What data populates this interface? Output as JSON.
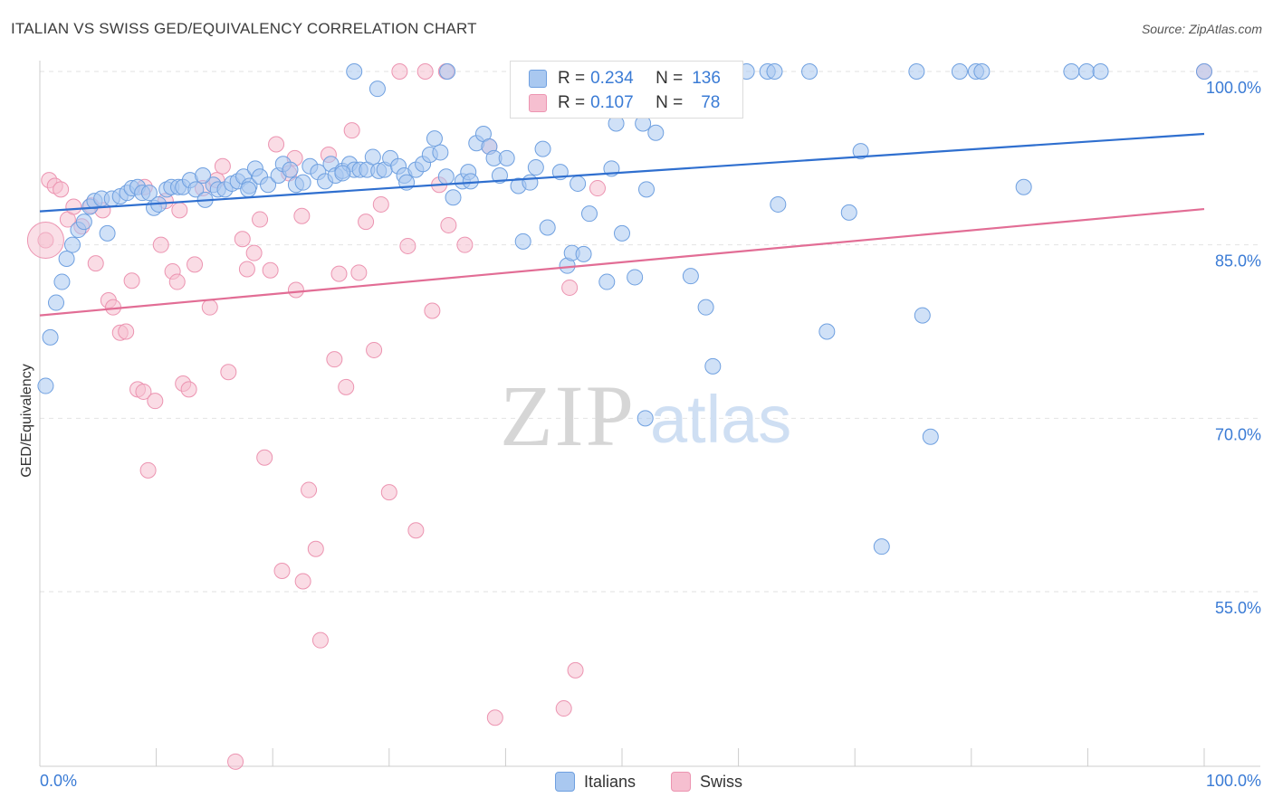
{
  "title": "ITALIAN VS SWISS GED/EQUIVALENCY CORRELATION CHART",
  "source": "Source: ZipAtlas.com",
  "watermark": {
    "zip": "ZIP",
    "atlas": "atlas"
  },
  "legend": {
    "r_label": "R =",
    "n_label": "N =",
    "rows": [
      {
        "r": "0.234",
        "n": "136"
      },
      {
        "r": "0.107",
        "n": "78"
      }
    ]
  },
  "bottom_legend": [
    "Italians",
    "Swiss"
  ],
  "colors": {
    "italians_fill": "#a9c8f0",
    "italians_stroke": "#6fa0e0",
    "italians_line": "#2f6fcf",
    "swiss_fill": "#f6bfd0",
    "swiss_stroke": "#ec94b1",
    "swiss_line": "#e26d95",
    "tick_text": "#3a7bd5",
    "grid": "#e2e2e2"
  },
  "chart_data": {
    "type": "scatter",
    "title": "ITALIAN VS SWISS GED/EQUIVALENCY CORRELATION CHART",
    "xlabel": "",
    "ylabel": "GED/Equivalency",
    "xlim": [
      0,
      100
    ],
    "ylim": [
      40,
      101.5
    ],
    "x_tick_labels": [
      "0.0%",
      "100.0%"
    ],
    "y_ticks": [
      55,
      70,
      85,
      100
    ],
    "y_tick_labels": [
      "55.0%",
      "70.0%",
      "85.0%",
      "100.0%"
    ],
    "grid": true,
    "legend_position": "top-center",
    "series": [
      {
        "name": "Italians",
        "r": 0.234,
        "n": 136,
        "trend": [
          [
            0,
            87.9
          ],
          [
            100,
            94.6
          ]
        ],
        "points": [
          [
            0.5,
            72.8
          ],
          [
            0.9,
            77.0
          ],
          [
            1.4,
            80.0
          ],
          [
            1.9,
            81.8
          ],
          [
            2.3,
            83.8
          ],
          [
            2.8,
            85.0
          ],
          [
            3.3,
            86.3
          ],
          [
            3.8,
            87.0
          ],
          [
            4.3,
            88.3
          ],
          [
            4.7,
            88.8
          ],
          [
            5.3,
            89.0
          ],
          [
            5.8,
            86.0
          ],
          [
            6.2,
            89.0
          ],
          [
            6.9,
            89.2
          ],
          [
            7.5,
            89.5
          ],
          [
            7.9,
            89.9
          ],
          [
            8.4,
            90.0
          ],
          [
            8.8,
            89.5
          ],
          [
            9.4,
            89.5
          ],
          [
            9.8,
            88.2
          ],
          [
            10.2,
            88.5
          ],
          [
            10.9,
            89.8
          ],
          [
            11.3,
            90.0
          ],
          [
            11.9,
            90.0
          ],
          [
            12.3,
            90.0
          ],
          [
            12.9,
            90.6
          ],
          [
            13.4,
            89.8
          ],
          [
            14.2,
            88.9
          ],
          [
            14.9,
            90.2
          ],
          [
            15.3,
            89.8
          ],
          [
            15.9,
            89.8
          ],
          [
            16.5,
            90.3
          ],
          [
            17.0,
            90.5
          ],
          [
            17.5,
            90.9
          ],
          [
            18.0,
            90.1
          ],
          [
            18.5,
            91.6
          ],
          [
            18.9,
            90.9
          ],
          [
            19.6,
            90.2
          ],
          [
            20.5,
            91.0
          ],
          [
            20.9,
            92.0
          ],
          [
            21.5,
            91.5
          ],
          [
            22.0,
            90.2
          ],
          [
            22.6,
            90.4
          ],
          [
            23.2,
            91.8
          ],
          [
            23.9,
            91.3
          ],
          [
            24.5,
            90.5
          ],
          [
            25.0,
            92.0
          ],
          [
            25.4,
            91.0
          ],
          [
            26.0,
            91.4
          ],
          [
            26.6,
            92.0
          ],
          [
            27.0,
            91.5
          ],
          [
            27.5,
            91.5
          ],
          [
            28.1,
            91.5
          ],
          [
            28.6,
            92.6
          ],
          [
            29.1,
            91.4
          ],
          [
            29.6,
            91.5
          ],
          [
            30.1,
            92.5
          ],
          [
            30.8,
            91.8
          ],
          [
            31.3,
            91.0
          ],
          [
            31.5,
            90.4
          ],
          [
            32.3,
            91.5
          ],
          [
            32.9,
            92.0
          ],
          [
            33.5,
            92.8
          ],
          [
            33.9,
            94.2
          ],
          [
            34.4,
            93.0
          ],
          [
            34.9,
            90.9
          ],
          [
            35.5,
            89.1
          ],
          [
            36.3,
            90.5
          ],
          [
            36.8,
            91.3
          ],
          [
            37.5,
            93.8
          ],
          [
            38.1,
            94.6
          ],
          [
            38.6,
            93.5
          ],
          [
            39.0,
            92.5
          ],
          [
            39.5,
            91.0
          ],
          [
            40.1,
            92.5
          ],
          [
            41.1,
            90.1
          ],
          [
            41.5,
            85.3
          ],
          [
            42.1,
            90.4
          ],
          [
            42.6,
            91.7
          ],
          [
            43.2,
            93.3
          ],
          [
            43.6,
            86.5
          ],
          [
            44.7,
            91.3
          ],
          [
            45.3,
            83.2
          ],
          [
            45.7,
            84.3
          ],
          [
            46.2,
            90.3
          ],
          [
            46.7,
            84.2
          ],
          [
            47.2,
            87.7
          ],
          [
            48.7,
            81.8
          ],
          [
            49.1,
            91.6
          ],
          [
            49.5,
            95.5
          ],
          [
            50.0,
            86.0
          ],
          [
            51.1,
            82.2
          ],
          [
            51.8,
            95.5
          ],
          [
            52.1,
            89.8
          ],
          [
            52.9,
            94.7
          ],
          [
            53.2,
            100.0
          ],
          [
            53.6,
            96.7
          ],
          [
            54.1,
            97.5
          ],
          [
            55.9,
            82.3
          ],
          [
            57.2,
            79.6
          ],
          [
            57.8,
            74.5
          ],
          [
            58.4,
            100.0
          ],
          [
            60.7,
            100.0
          ],
          [
            62.5,
            100.0
          ],
          [
            63.1,
            100.0
          ],
          [
            63.4,
            88.5
          ],
          [
            66.1,
            100.0
          ],
          [
            67.6,
            77.5
          ],
          [
            69.5,
            87.8
          ],
          [
            70.5,
            93.1
          ],
          [
            72.3,
            58.9
          ],
          [
            75.3,
            100.0
          ],
          [
            75.8,
            78.9
          ],
          [
            76.5,
            68.4
          ],
          [
            79.0,
            100.0
          ],
          [
            80.4,
            100.0
          ],
          [
            80.9,
            100.0
          ],
          [
            84.5,
            90.0
          ],
          [
            88.6,
            100.0
          ],
          [
            89.9,
            100.0
          ],
          [
            91.1,
            100.0
          ],
          [
            100.0,
            100.0
          ],
          [
            52.0,
            70.0
          ],
          [
            27.0,
            100.0
          ],
          [
            42.0,
            100.0
          ],
          [
            44.5,
            100.0
          ],
          [
            46.0,
            97.0
          ],
          [
            48.0,
            100.0
          ],
          [
            29.0,
            98.5
          ],
          [
            35.0,
            100.0
          ],
          [
            44.0,
            100.0
          ],
          [
            50.5,
            100.0
          ],
          [
            17.9,
            89.8
          ],
          [
            26.0,
            91.2
          ],
          [
            37.0,
            90.5
          ],
          [
            14.0,
            91.0
          ]
        ]
      },
      {
        "name": "Swiss",
        "r": 0.107,
        "n": 78,
        "trend": [
          [
            0,
            78.9
          ],
          [
            100,
            88.1
          ]
        ],
        "points": [
          [
            0.5,
            85.4
          ],
          [
            0.8,
            90.6
          ],
          [
            1.3,
            90.1
          ],
          [
            1.8,
            89.8
          ],
          [
            2.4,
            87.2
          ],
          [
            2.9,
            88.3
          ],
          [
            3.6,
            86.6
          ],
          [
            4.4,
            88.4
          ],
          [
            4.8,
            83.4
          ],
          [
            5.4,
            88.0
          ],
          [
            5.9,
            80.2
          ],
          [
            6.3,
            79.6
          ],
          [
            6.9,
            77.4
          ],
          [
            7.4,
            77.5
          ],
          [
            7.9,
            81.9
          ],
          [
            8.4,
            72.5
          ],
          [
            8.9,
            72.3
          ],
          [
            9.3,
            65.5
          ],
          [
            9.9,
            71.5
          ],
          [
            10.4,
            85.0
          ],
          [
            10.8,
            88.8
          ],
          [
            11.4,
            82.7
          ],
          [
            11.8,
            81.8
          ],
          [
            12.3,
            73.0
          ],
          [
            12.8,
            72.5
          ],
          [
            13.3,
            83.3
          ],
          [
            14.0,
            89.9
          ],
          [
            14.6,
            79.6
          ],
          [
            15.2,
            90.6
          ],
          [
            15.7,
            91.8
          ],
          [
            16.2,
            74.0
          ],
          [
            16.8,
            40.3
          ],
          [
            17.4,
            85.5
          ],
          [
            17.8,
            82.9
          ],
          [
            18.4,
            84.3
          ],
          [
            18.9,
            87.2
          ],
          [
            19.3,
            66.6
          ],
          [
            19.8,
            82.8
          ],
          [
            20.3,
            93.7
          ],
          [
            20.8,
            56.8
          ],
          [
            21.4,
            91.2
          ],
          [
            22.0,
            81.1
          ],
          [
            22.6,
            55.9
          ],
          [
            23.1,
            63.8
          ],
          [
            23.7,
            58.7
          ],
          [
            24.1,
            50.8
          ],
          [
            24.8,
            92.8
          ],
          [
            25.3,
            75.1
          ],
          [
            25.7,
            82.5
          ],
          [
            26.3,
            72.7
          ],
          [
            26.8,
            94.9
          ],
          [
            27.4,
            82.6
          ],
          [
            28.0,
            87.0
          ],
          [
            28.7,
            75.9
          ],
          [
            29.3,
            88.5
          ],
          [
            30.0,
            63.6
          ],
          [
            30.9,
            100.0
          ],
          [
            31.6,
            84.9
          ],
          [
            32.3,
            60.3
          ],
          [
            33.1,
            100.0
          ],
          [
            33.7,
            79.3
          ],
          [
            34.3,
            90.2
          ],
          [
            34.9,
            100.0
          ],
          [
            35.1,
            86.7
          ],
          [
            38.6,
            93.5
          ],
          [
            39.1,
            44.1
          ],
          [
            45.0,
            44.9
          ],
          [
            45.5,
            81.3
          ],
          [
            46.0,
            48.2
          ],
          [
            47.9,
            89.9
          ],
          [
            46.8,
            100.0
          ],
          [
            58.4,
            100.0
          ],
          [
            100.0,
            100.0
          ],
          [
            21.9,
            92.5
          ],
          [
            12.0,
            88.0
          ],
          [
            22.5,
            87.5
          ],
          [
            9.0,
            90.0
          ],
          [
            36.5,
            85.0
          ]
        ]
      }
    ]
  }
}
